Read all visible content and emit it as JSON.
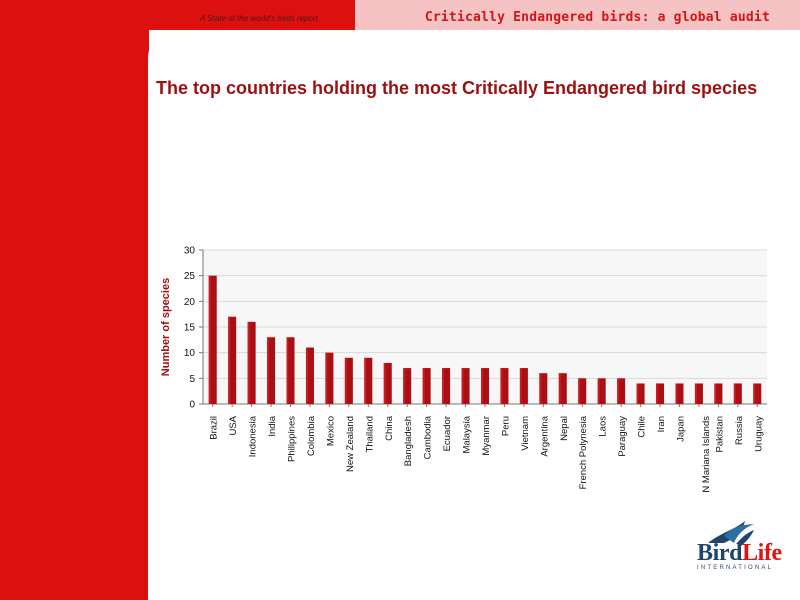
{
  "header": {
    "report_label": "A State of the world’s birds report",
    "title": "Critically Endangered birds: a global audit"
  },
  "slide": {
    "title": "The top countries holding the most Critically Endangered bird species"
  },
  "logo": {
    "name_part_1": "Bird",
    "name_part_2": "Life",
    "subtitle": "INTERNATIONAL"
  },
  "colors": {
    "brand_red": "#dd1010",
    "strip_pink": "#f5c3c3",
    "title_red": "#9b1111",
    "bar_dark_red": "#a90f14"
  },
  "chart_data": {
    "type": "bar",
    "title": "",
    "xlabel": "",
    "ylabel": "Number of species",
    "ylim": [
      0,
      30
    ],
    "yticks": [
      0,
      5,
      10,
      15,
      20,
      25,
      30
    ],
    "grid": true,
    "legend": "none",
    "categories": [
      "Brazil",
      "USA",
      "Indonesia",
      "India",
      "Philippines",
      "Colombia",
      "Mexico",
      "New Zealand",
      "Thailand",
      "China",
      "Bangladesh",
      "Cambodia",
      "Ecuador",
      "Malaysia",
      "Myanmar",
      "Peru",
      "Vietnam",
      "Argentina",
      "Nepal",
      "French Polynesia",
      "Laos",
      "Paraguay",
      "Chile",
      "Iran",
      "Japan",
      "N Mariana Islands",
      "Pakistan",
      "Russia",
      "Uruguay"
    ],
    "values": [
      25,
      17,
      16,
      13,
      13,
      11,
      10,
      9,
      9,
      8,
      7,
      7,
      7,
      7,
      7,
      7,
      7,
      6,
      6,
      5,
      5,
      5,
      4,
      4,
      4,
      4,
      4,
      4,
      4
    ]
  }
}
